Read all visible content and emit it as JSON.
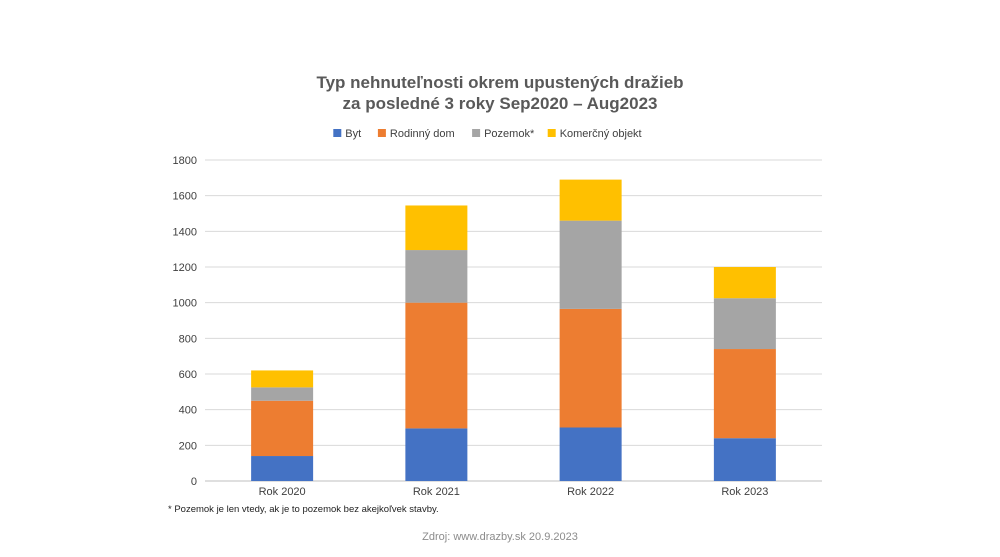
{
  "chart_data": {
    "type": "bar",
    "stacked": true,
    "title": [
      "Typ nehnuteľnosti okrem upustených dražieb",
      "za posledné 3 roky Sep2020 – Aug2023"
    ],
    "categories": [
      "Rok 2020",
      "Rok 2021",
      "Rok 2022",
      "Rok 2023"
    ],
    "series": [
      {
        "name": "Byt",
        "color": "#4472C4",
        "values": [
          140,
          295,
          300,
          240
        ]
      },
      {
        "name": "Rodinný dom",
        "color": "#ED7D31",
        "values": [
          310,
          705,
          665,
          500
        ]
      },
      {
        "name": "Pozemok*",
        "color": "#A5A5A5",
        "values": [
          75,
          295,
          495,
          285
        ]
      },
      {
        "name": "Komerčný objekt",
        "color": "#FFC000",
        "values": [
          95,
          250,
          230,
          175
        ]
      }
    ],
    "ylim": [
      0,
      1800
    ],
    "yticks": [
      "0",
      "200",
      "400",
      "600",
      "800",
      "1000",
      "1200",
      "1400",
      "1600",
      "1800"
    ],
    "grid": true,
    "legend_position": "top"
  },
  "footnote": "* Pozemok je len vtedy, ak je to pozemok bez akejkoľvek stavby.",
  "source": "Zdroj: www.drazby.sk 20.9.2023"
}
